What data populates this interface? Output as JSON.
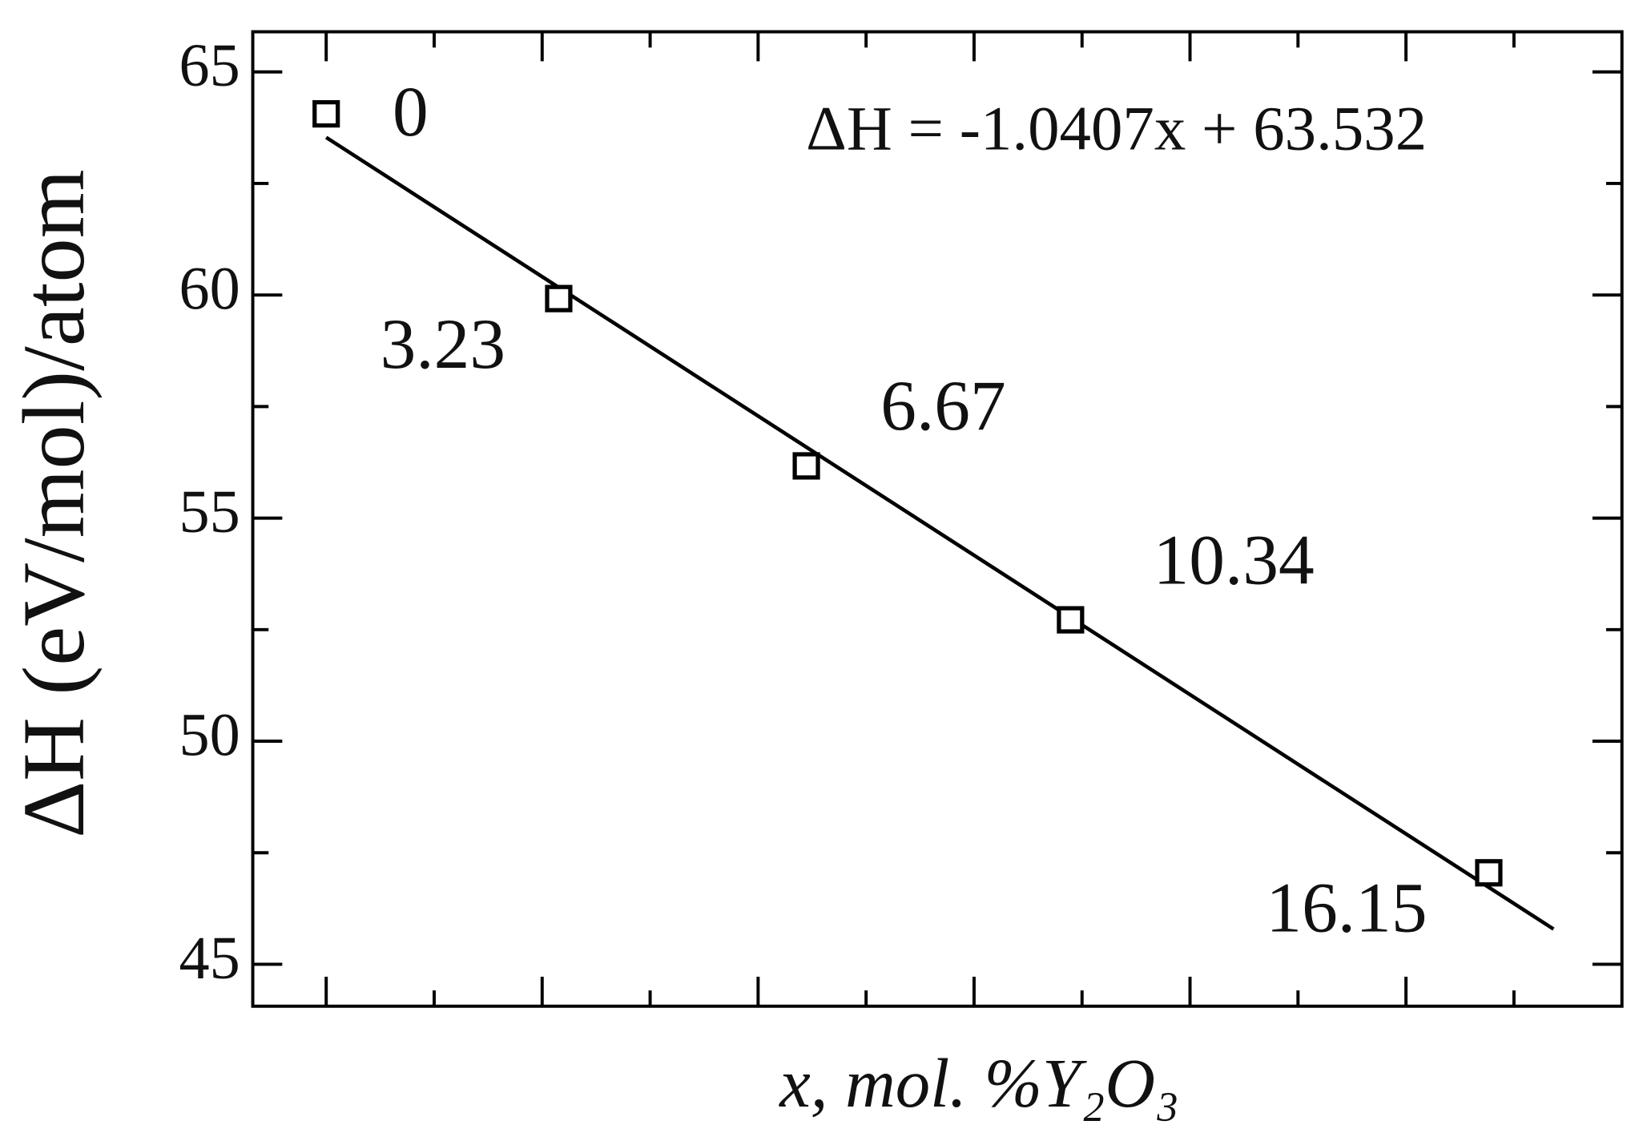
{
  "chart_data": {
    "type": "scatter",
    "y_label": "ΔH (eV/mol)/atom",
    "x_label": "x, mol. %Y₂O₃",
    "annotation": "ΔH = -1.0407x + 63.532",
    "x": [
      0,
      3.23,
      6.67,
      10.34,
      16.15
    ],
    "values": [
      64.06,
      59.92,
      56.17,
      52.72,
      47.05
    ],
    "point_labels": [
      "0",
      "3.23",
      "6.67",
      "10.34",
      "16.15"
    ],
    "color": "#000000",
    "fit_line": {
      "x": [
        0,
        17.05
      ],
      "values": [
        63.532,
        45.789
      ]
    },
    "xlim": [
      -1.02,
      18
    ],
    "ylim": [
      44.06,
      65.9
    ],
    "xticks": [
      0,
      3,
      6,
      9,
      12,
      15
    ],
    "xticks_minor": [
      1.5,
      4.5,
      7.5,
      10.5,
      13.5,
      16.5
    ],
    "yticks": [
      45,
      50,
      55,
      60,
      65
    ],
    "yticks_minor": [
      47.5,
      52.5,
      57.5,
      62.5
    ],
    "grid": false
  }
}
